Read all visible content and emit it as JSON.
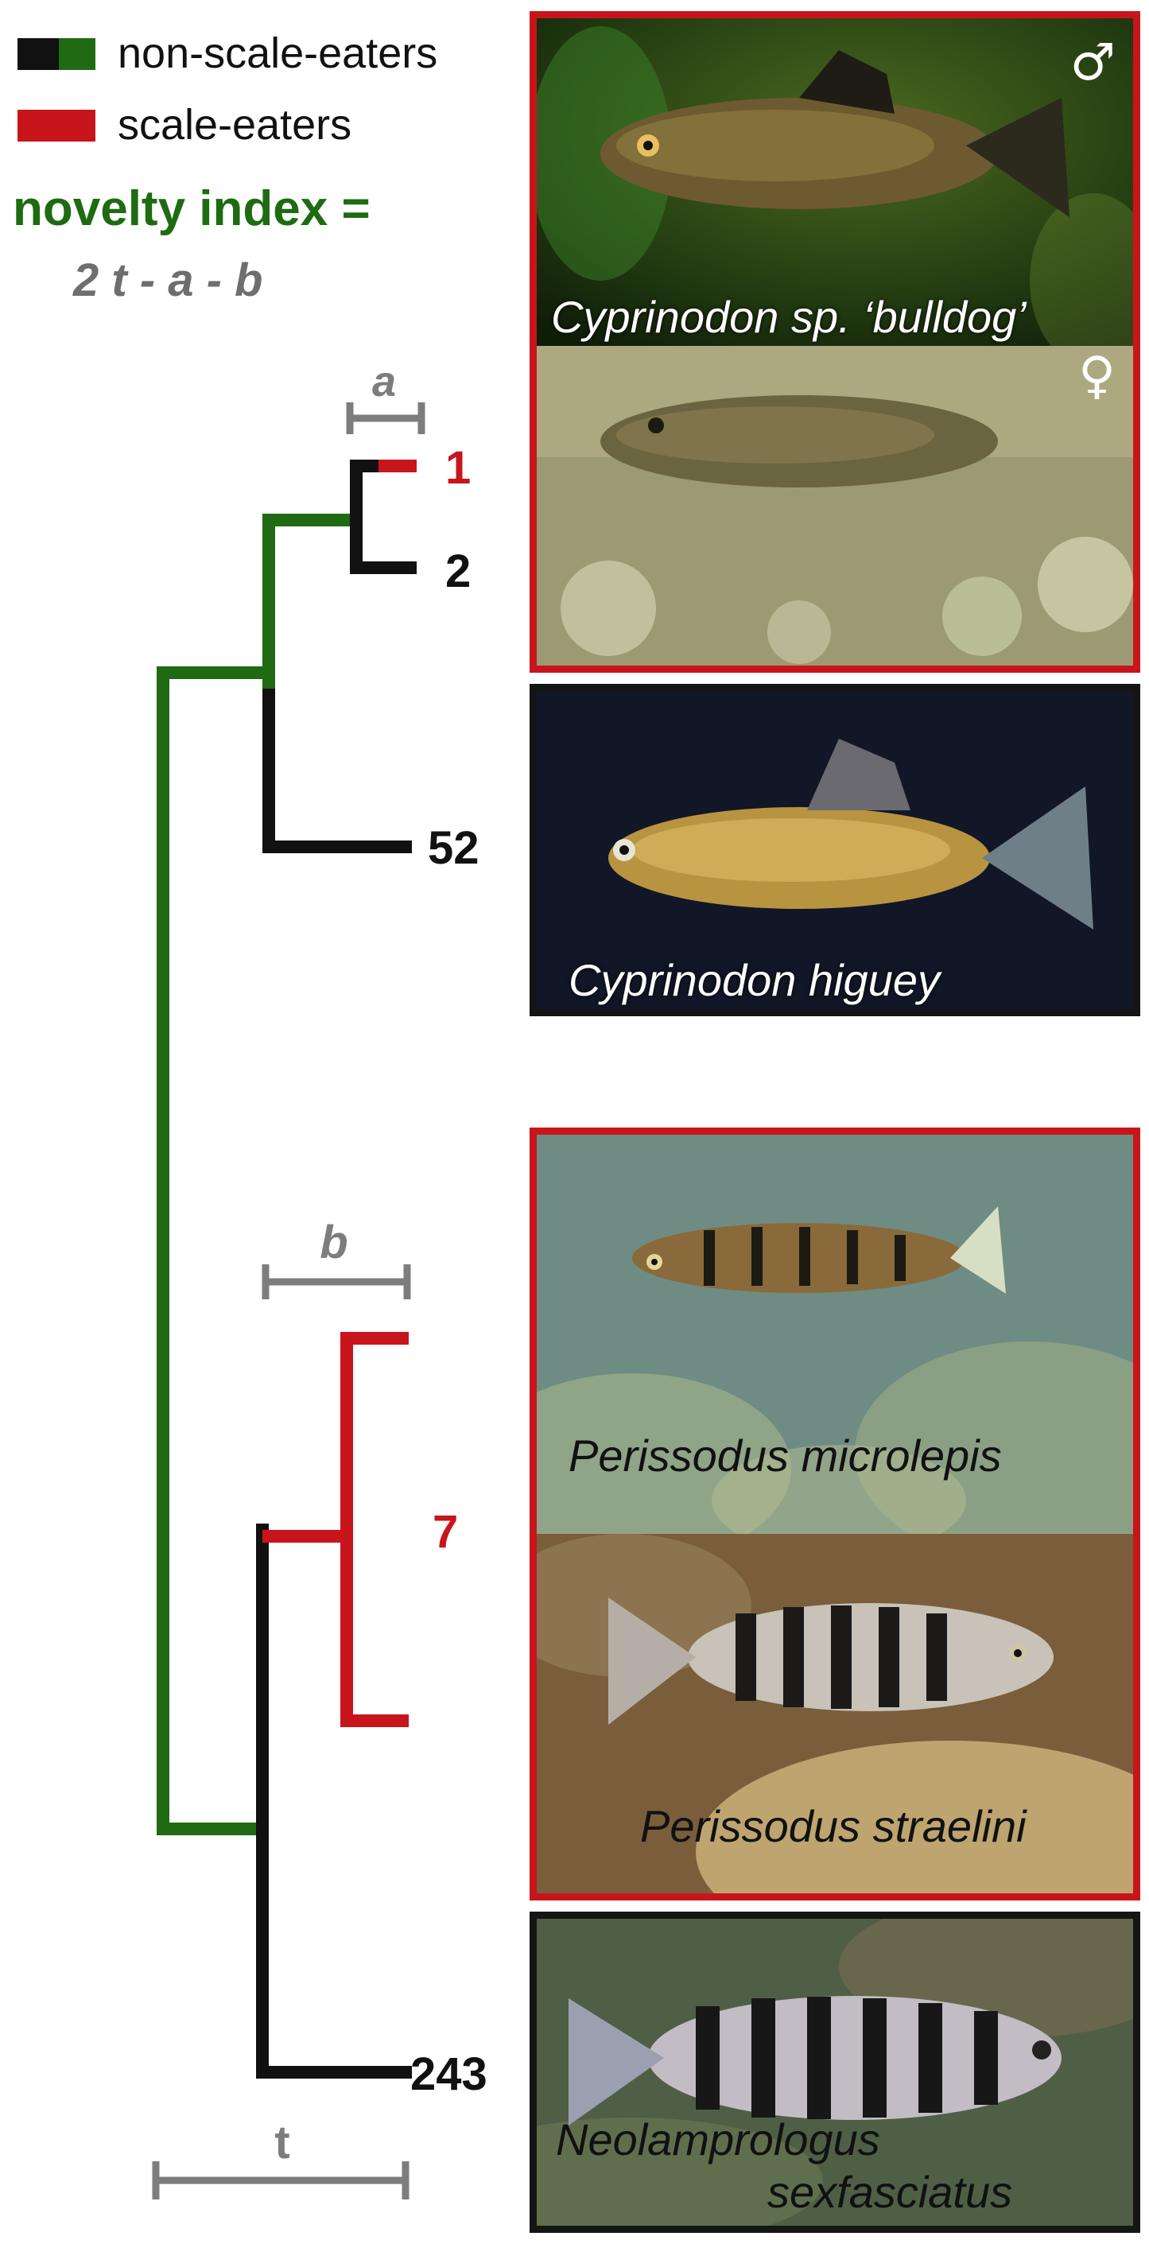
{
  "legend": {
    "non_scale_eaters": {
      "label": "non-scale-eaters",
      "colors": [
        "#111111",
        "#1f6a12"
      ]
    },
    "scale_eaters": {
      "label": "scale-eaters",
      "color": "#c8151b"
    }
  },
  "formula": {
    "title": "novelty index =",
    "equation": "2 t - a - b"
  },
  "tree": {
    "branch_labels": {
      "a": "a",
      "b": "b",
      "t": "t"
    },
    "tips": [
      {
        "label": "1",
        "trait": "scale-eater",
        "color": "#c8151b"
      },
      {
        "label": "2",
        "trait": "non-scale-eater",
        "color": "#111111"
      },
      {
        "label": "52",
        "trait": "non-scale-eater",
        "color": "#111111"
      },
      {
        "label": "7",
        "trait": "scale-eater",
        "color": "#c8151b"
      },
      {
        "label": "243",
        "trait": "non-scale-eater",
        "color": "#111111"
      }
    ]
  },
  "panels": [
    {
      "caption": "Cyprinodon sp. ‘bulldog’",
      "male_symbol": "♂",
      "female_symbol": "♀",
      "frame": "red"
    },
    {
      "caption": "Cyprinodon higuey",
      "frame": "black"
    },
    {
      "caption": "Perissodus microlepis",
      "frame": "red"
    },
    {
      "caption": "Perissodus straelini",
      "frame": "red"
    },
    {
      "caption_line1": "Neolamprologus",
      "caption_line2": "sexfasciatus",
      "frame": "black"
    }
  ],
  "colors": {
    "green": "#1f6a12",
    "red": "#c8151b",
    "black": "#111111",
    "gray": "#7d7d7d"
  }
}
